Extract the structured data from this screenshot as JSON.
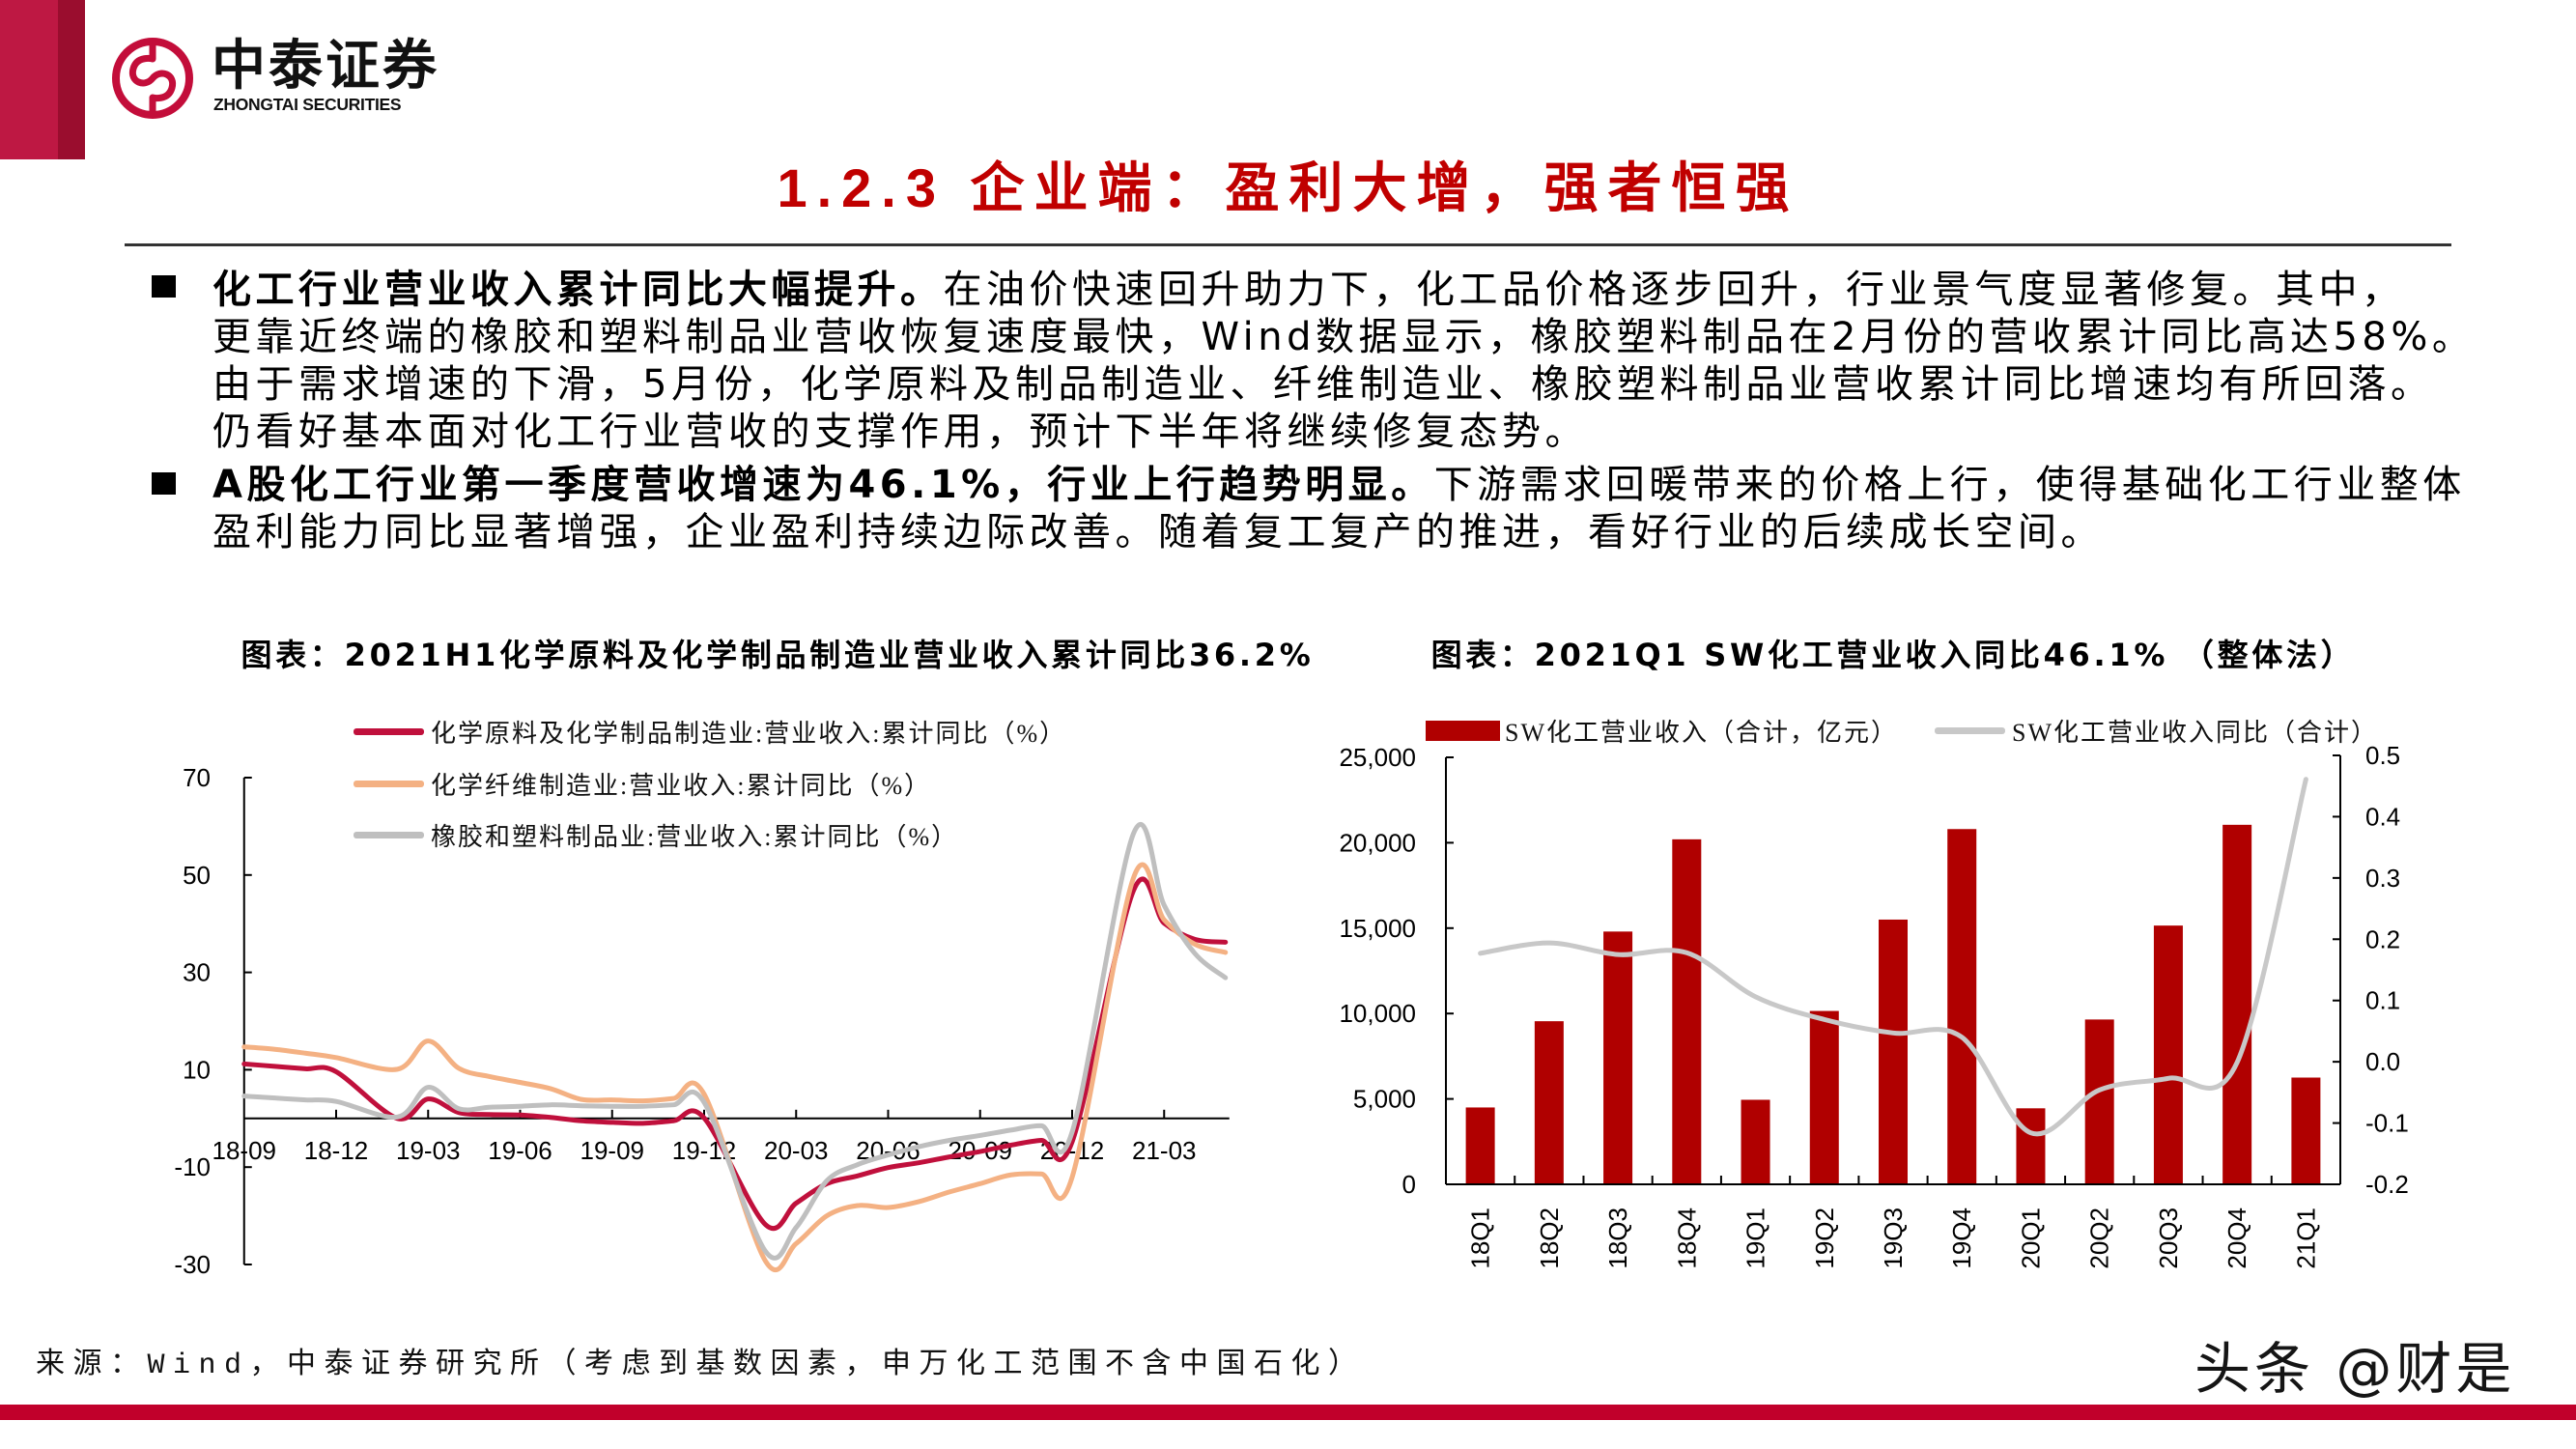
{
  "header": {
    "logo_cn": "中泰证券",
    "logo_en": "ZHONGTAI SECURITIES",
    "logo_icon": "zhongtai-logo-icon"
  },
  "title": "1.2.3 企业端：盈利大增，强者恒强",
  "content": {
    "bullet_icon": "square-bullet-icon",
    "bullets": [
      {
        "bold": "化工行业营业收入累计同比大幅提升。",
        "lines": [
          "在油价快速回升助力下，化工品价格逐步回升，行业景气度显著修复。其中，",
          "更靠近终端的橡胶和塑料制品业营收恢复速度最快，Wind数据显示，橡胶塑料制品在2月份的营收累计同比高达58%。",
          "由于需求增速的下滑，5月份，化学原料及制品制造业、纤维制造业、橡胶塑料制品业营收累计同比增速均有所回落。",
          "仍看好基本面对化工行业营收的支撑作用，预计下半年将继续修复态势。"
        ]
      },
      {
        "bold": "A股化工行业第一季度营收增速为46.1%，行业上行趋势明显。",
        "lines": [
          "下游需求回暖带来的价格上行，使得基础化工行业整体",
          "盈利能力同比显著增强，企业盈利持续边际改善。随着复工复产的推进，看好行业的后续成长空间。"
        ]
      }
    ]
  },
  "source": "来源：Wind，中泰证券研究所（考虑到基数因素，申万化工范围不含中国石化）",
  "watermark": "头条 @财是",
  "colors": {
    "brand_red": "#BE1843",
    "brand_red_dark": "#9A0D2E",
    "title_red": "#C00000",
    "footer_red": "#C1002B"
  },
  "chart_data": [
    {
      "type": "line",
      "title": "图表：2021H1化学原料及化学制品制造业营业收入累计同比36.2%",
      "xlabel": "",
      "ylabel": "",
      "ylim": [
        -30,
        70
      ],
      "yticks": [
        -30,
        -10,
        10,
        30,
        50,
        70
      ],
      "grid": false,
      "legend_position": "upper-left",
      "x": [
        "18-09",
        "18-10",
        "18-11",
        "18-12",
        "19-01",
        "19-02",
        "19-03",
        "19-04",
        "19-05",
        "19-06",
        "19-07",
        "19-08",
        "19-09",
        "19-10",
        "19-11",
        "19-12",
        "20-01",
        "20-02",
        "20-03",
        "20-04",
        "20-05",
        "20-06",
        "20-07",
        "20-08",
        "20-09",
        "20-10",
        "20-11",
        "20-12",
        "21-01",
        "21-02",
        "21-03",
        "21-04",
        "21-05"
      ],
      "xtick_labels": [
        "18-09",
        "18-12",
        "19-03",
        "19-06",
        "19-09",
        "19-12",
        "20-03",
        "20-06",
        "20-09",
        "20-12",
        "21-03"
      ],
      "series": [
        {
          "name": "化学原料及化学制品制造业:营业收入:累计同比（%）",
          "color": "#C0103C",
          "values": [
            11.2,
            10.7,
            10.2,
            9.6,
            null,
            0.0,
            4.0,
            1.2,
            0.8,
            0.7,
            0.2,
            -0.5,
            -0.8,
            -1.0,
            -0.5,
            0.1,
            null,
            -21.8,
            -17.4,
            -13.4,
            -11.8,
            -10.1,
            -9.1,
            -7.9,
            -6.8,
            -5.5,
            -4.5,
            -4.8,
            null,
            46.8,
            40.1,
            36.8,
            36.2
          ]
        },
        {
          "name": "化学纤维制造业:营业收入:累计同比（%）",
          "color": "#F4B183",
          "values": [
            14.7,
            14.2,
            13.4,
            12.5,
            null,
            10.1,
            15.9,
            10.3,
            8.6,
            7.4,
            6.1,
            3.9,
            3.8,
            3.6,
            4.1,
            5.0,
            null,
            -29.3,
            -25.7,
            -20.0,
            -17.9,
            -18.3,
            -17.1,
            -15.1,
            -13.4,
            -11.6,
            -11.4,
            -12.1,
            null,
            49.4,
            40.8,
            35.8,
            34.1
          ]
        },
        {
          "name": "橡胶和塑料制品业:营业收入:累计同比（%）",
          "color": "#BFBFBF",
          "values": [
            4.6,
            4.2,
            3.8,
            3.5,
            null,
            0.3,
            6.4,
            2.0,
            2.3,
            2.5,
            2.8,
            2.6,
            2.5,
            2.5,
            2.8,
            3.3,
            null,
            -27.3,
            -22.4,
            -12.8,
            -9.5,
            -7.5,
            -5.8,
            -4.5,
            -3.5,
            -2.4,
            -1.5,
            -2.8,
            null,
            58.5,
            43.8,
            33.9,
            28.9
          ]
        }
      ]
    },
    {
      "type": "bar",
      "title": "图表：2021Q1 SW化工营业收入同比46.1% （整体法）",
      "xlabel": "",
      "ylabel": "",
      "ylim": [
        0,
        25000
      ],
      "yticks": [
        0,
        5000,
        10000,
        15000,
        20000,
        25000
      ],
      "ytick_labels": [
        "0",
        "5,000",
        "10,000",
        "15,000",
        "20,000",
        "25,000"
      ],
      "y2lim": [
        -0.2,
        0.5
      ],
      "y2ticks": [
        -0.2,
        -0.1,
        0.0,
        0.1,
        0.2,
        0.3,
        0.4,
        0.5
      ],
      "y2tick_labels": [
        "-0.2",
        "-0.1",
        "0.0",
        "0.1",
        "0.2",
        "0.3",
        "0.4",
        "0.5"
      ],
      "grid": false,
      "legend_position": "top",
      "categories": [
        "18Q1",
        "18Q2",
        "18Q3",
        "18Q4",
        "19Q1",
        "19Q2",
        "19Q3",
        "19Q4",
        "20Q1",
        "20Q2",
        "20Q3",
        "20Q4",
        "21Q1"
      ],
      "series": [
        {
          "name": "SW化工营业收入（合计，亿元）",
          "type": "bar",
          "axis": "left",
          "color": "#B00000",
          "values": [
            4500,
            9550,
            14800,
            20200,
            4950,
            10150,
            15500,
            20800,
            4450,
            9650,
            15150,
            21050,
            6250
          ]
        },
        {
          "name": "SW化工营业收入同比（合计）",
          "type": "line",
          "axis": "right",
          "color": "#C8C8C8",
          "values": [
            0.177,
            0.194,
            0.175,
            0.178,
            0.106,
            0.069,
            0.047,
            0.04,
            -0.116,
            -0.046,
            -0.027,
            -0.001,
            0.461
          ]
        }
      ]
    }
  ]
}
